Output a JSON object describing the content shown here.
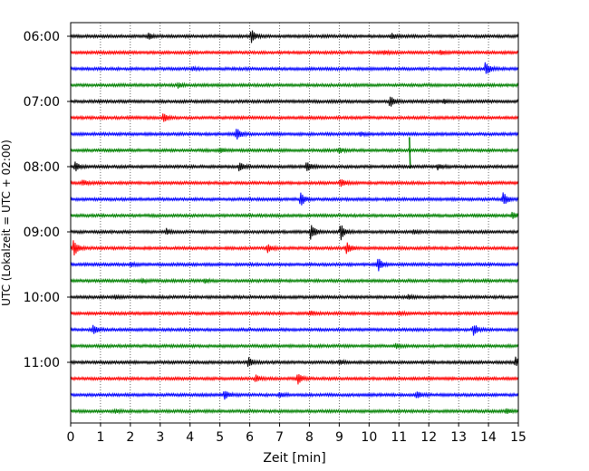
{
  "chart_data": {
    "type": "line",
    "title": "",
    "xlabel": "Zeit  [min]",
    "ylabel": "UTC (Lokalzeit = UTC + 02:00)",
    "xlim": [
      0,
      15
    ],
    "x_ticks": [
      "0",
      "1",
      "2",
      "3",
      "4",
      "5",
      "6",
      "7",
      "8",
      "9",
      "10",
      "11",
      "12",
      "13",
      "14",
      "15"
    ],
    "y_tick_labels": [
      "06:00",
      "07:00",
      "08:00",
      "09:00",
      "10:00",
      "11:00"
    ],
    "row_interval_minutes": 15,
    "grid": "vertical dotted at each minute",
    "color_cycle": [
      "#000000",
      "#ff0000",
      "#0000ff",
      "#008000"
    ],
    "rows": [
      {
        "time": "06:00",
        "events": [
          {
            "min": 2.6,
            "amp": 0.5
          },
          {
            "min": 6.05,
            "amp": 1.0
          },
          {
            "min": 10.75,
            "amp": 0.4
          }
        ]
      },
      {
        "time": "06:15",
        "events": [
          {
            "min": 10.5,
            "amp": 0.3
          },
          {
            "min": 12.4,
            "amp": 0.3
          }
        ]
      },
      {
        "time": "06:30",
        "events": [
          {
            "min": 4.1,
            "amp": 0.3
          },
          {
            "min": 13.9,
            "amp": 1.1
          }
        ]
      },
      {
        "time": "06:45",
        "events": [
          {
            "min": 3.6,
            "amp": 0.4
          }
        ]
      },
      {
        "time": "07:00",
        "events": [
          {
            "min": 10.7,
            "amp": 0.9
          },
          {
            "min": 12.5,
            "amp": 0.3
          }
        ]
      },
      {
        "time": "07:15",
        "events": [
          {
            "min": 3.1,
            "amp": 0.7
          }
        ]
      },
      {
        "time": "07:30",
        "events": [
          {
            "min": 5.55,
            "amp": 1.0
          },
          {
            "min": 9.7,
            "amp": 0.3
          }
        ]
      },
      {
        "time": "07:45",
        "events": [
          {
            "min": 5.0,
            "amp": 0.4
          },
          {
            "min": 9.0,
            "amp": 0.4
          },
          {
            "min": 11.35,
            "amp": 1.6,
            "spike": true
          }
        ]
      },
      {
        "time": "08:00",
        "events": [
          {
            "min": 0.15,
            "amp": 0.8
          },
          {
            "min": 5.65,
            "amp": 0.7
          },
          {
            "min": 7.9,
            "amp": 0.9
          },
          {
            "min": 12.3,
            "amp": 0.4
          }
        ]
      },
      {
        "time": "08:15",
        "events": [
          {
            "min": 0.4,
            "amp": 0.4
          },
          {
            "min": 9.05,
            "amp": 0.7
          }
        ]
      },
      {
        "time": "08:30",
        "events": [
          {
            "min": 7.7,
            "amp": 1.2
          },
          {
            "min": 14.5,
            "amp": 1.1
          }
        ]
      },
      {
        "time": "08:45",
        "events": [
          {
            "min": 14.8,
            "amp": 0.5
          }
        ]
      },
      {
        "time": "09:00",
        "events": [
          {
            "min": 3.2,
            "amp": 0.5
          },
          {
            "min": 8.05,
            "amp": 1.3
          },
          {
            "min": 9.05,
            "amp": 1.3
          },
          {
            "min": 11.5,
            "amp": 0.3
          }
        ]
      },
      {
        "time": "09:15",
        "events": [
          {
            "min": 0.1,
            "amp": 1.4
          },
          {
            "min": 6.6,
            "amp": 0.6
          },
          {
            "min": 9.25,
            "amp": 1.0
          }
        ]
      },
      {
        "time": "09:30",
        "events": [
          {
            "min": 10.3,
            "amp": 1.1
          },
          {
            "min": 2.0,
            "amp": 0.3
          }
        ]
      },
      {
        "time": "09:45",
        "events": [
          {
            "min": 2.4,
            "amp": 0.3
          },
          {
            "min": 4.5,
            "amp": 0.3
          }
        ]
      },
      {
        "time": "10:00",
        "events": [
          {
            "min": 1.5,
            "amp": 0.3
          },
          {
            "min": 11.3,
            "amp": 0.3
          }
        ]
      },
      {
        "time": "10:15",
        "events": [
          {
            "min": 8.0,
            "amp": 0.4
          },
          {
            "min": 11.0,
            "amp": 0.3
          }
        ]
      },
      {
        "time": "10:30",
        "events": [
          {
            "min": 0.75,
            "amp": 0.7
          },
          {
            "min": 13.5,
            "amp": 1.0
          }
        ]
      },
      {
        "time": "10:45",
        "events": [
          {
            "min": 10.9,
            "amp": 0.4
          }
        ]
      },
      {
        "time": "11:00",
        "events": [
          {
            "min": 5.95,
            "amp": 0.8
          },
          {
            "min": 14.9,
            "amp": 0.8
          },
          {
            "min": 9.0,
            "amp": 0.3
          }
        ]
      },
      {
        "time": "11:15",
        "events": [
          {
            "min": 6.2,
            "amp": 0.6
          },
          {
            "min": 7.6,
            "amp": 0.9
          }
        ]
      },
      {
        "time": "11:30",
        "events": [
          {
            "min": 5.15,
            "amp": 0.8
          },
          {
            "min": 7.0,
            "amp": 0.4
          },
          {
            "min": 11.6,
            "amp": 0.6
          }
        ]
      },
      {
        "time": "11:45",
        "events": [
          {
            "min": 1.5,
            "amp": 0.3
          },
          {
            "min": 14.6,
            "amp": 0.4
          }
        ]
      }
    ]
  }
}
